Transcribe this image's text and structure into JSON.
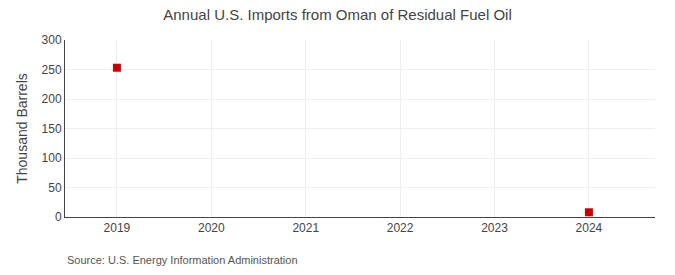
{
  "chart_data": {
    "type": "scatter",
    "title": "Annual U.S. Imports from Oman of Residual Fuel Oil",
    "y_label": "Thousand Barrels",
    "annotations": [
      "Source: U.S. Energy Information Administration"
    ],
    "x": [
      2019,
      2024
    ],
    "values": [
      253,
      8
    ],
    "color": "#cc0000",
    "marker": "square",
    "xlim": [
      2018.45,
      2024.7
    ],
    "xticks": [
      2019,
      2020,
      2021,
      2022,
      2023,
      2024
    ],
    "ylim": [
      0,
      300
    ],
    "yticks": [
      0,
      50,
      100,
      150,
      200,
      250,
      300
    ],
    "grid": true
  }
}
